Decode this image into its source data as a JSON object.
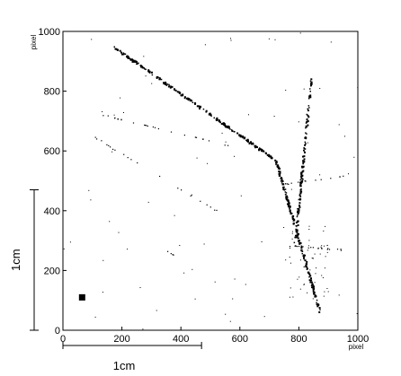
{
  "chart_data": {
    "type": "scatter",
    "title": "",
    "xlabel": "pixel",
    "ylabel": "pixel",
    "xlim": [
      0,
      1000
    ],
    "ylim": [
      0,
      1000
    ],
    "x_ticks": [
      0,
      200,
      400,
      600,
      800,
      1000
    ],
    "y_ticks": [
      0,
      200,
      400,
      600,
      800,
      1000
    ],
    "grid": false,
    "scale_bars": [
      {
        "orientation": "vertical",
        "label": "1cm",
        "from": 0,
        "to": 470
      },
      {
        "orientation": "horizontal",
        "label": "1cm",
        "from": 0,
        "to": 470
      }
    ],
    "marker": {
      "x": 65,
      "y": 110,
      "shape": "square"
    },
    "tracks": [
      {
        "from": [
          170,
          950
        ],
        "to": [
          720,
          570
        ],
        "density": 1.0
      },
      {
        "from": [
          720,
          570
        ],
        "to": [
          870,
          60
        ],
        "density": 1.0
      },
      {
        "from": [
          840,
          850
        ],
        "to": [
          785,
          290
        ],
        "density": 0.8
      },
      {
        "from": [
          100,
          730
        ],
        "to": [
          560,
          620
        ],
        "density": 0.35
      },
      {
        "from": [
          100,
          650
        ],
        "to": [
          540,
          390
        ],
        "density": 0.25
      },
      {
        "from": [
          760,
          285
        ],
        "to": [
          950,
          270
        ],
        "density": 0.55
      },
      {
        "from": [
          745,
          490
        ],
        "to": [
          960,
          520
        ],
        "density": 0.3
      },
      {
        "from": [
          800,
          200
        ],
        "to": [
          940,
          330
        ],
        "density": 0.2
      },
      {
        "from": [
          350,
          265
        ],
        "to": [
          375,
          255
        ],
        "density": 0.6
      }
    ]
  }
}
